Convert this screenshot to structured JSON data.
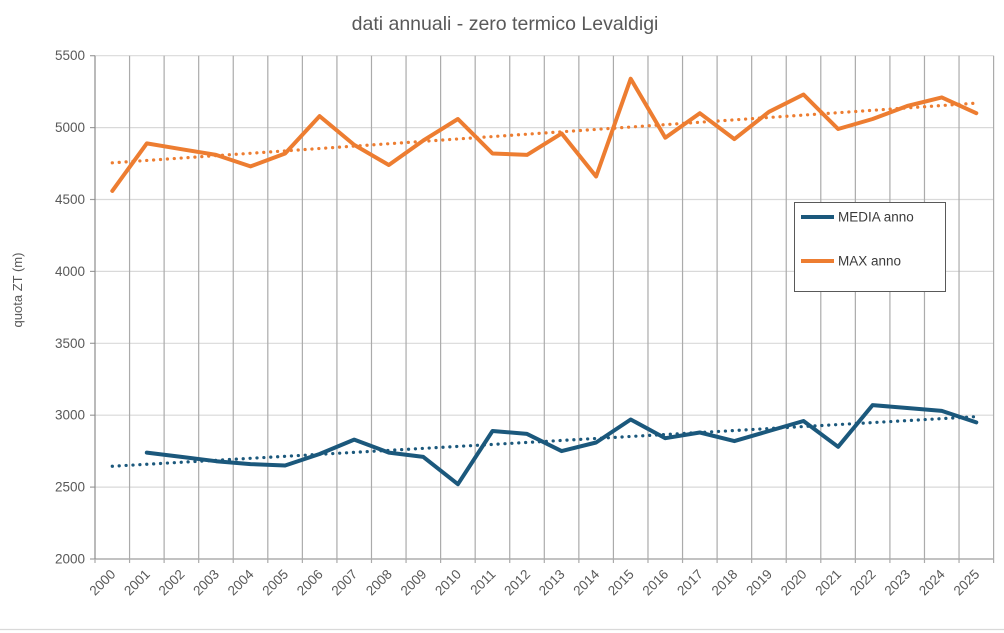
{
  "chart_data": {
    "type": "line",
    "title": "dati annuali - zero termico Levaldigi",
    "xlabel": "",
    "ylabel": "quota ZT (m)",
    "ylim": [
      2000,
      5500
    ],
    "ytick_step": 500,
    "ytick_labels": [
      "2000",
      "2500",
      "3000",
      "3500",
      "4000",
      "4500",
      "5000",
      "5500"
    ],
    "grid": "both",
    "legend_position": "right-middle",
    "categories": [
      "2000",
      "2001",
      "2002",
      "2003",
      "2004",
      "2005",
      "2006",
      "2007",
      "2008",
      "2009",
      "2010",
      "2011",
      "2012",
      "2013",
      "2014",
      "2015",
      "2016",
      "2017",
      "2018",
      "2019",
      "2020",
      "2021",
      "2022",
      "2023",
      "2024",
      "2025"
    ],
    "series": [
      {
        "name": "MEDIA anno",
        "color": "#1b587c",
        "values": [
          null,
          2740,
          2710,
          2680,
          2660,
          2650,
          2730,
          2830,
          2740,
          2710,
          2520,
          2890,
          2870,
          2750,
          2810,
          2970,
          2840,
          2880,
          2820,
          2890,
          2960,
          2780,
          3070,
          3050,
          3030,
          2950
        ],
        "trendline": {
          "style": "dotted",
          "start": 2645,
          "end": 2990
        }
      },
      {
        "name": "MAX anno",
        "color": "#ed7d31",
        "values": [
          4560,
          4890,
          4850,
          4810,
          4730,
          4820,
          5080,
          4880,
          4740,
          4910,
          5060,
          4820,
          4810,
          4960,
          4660,
          5340,
          4930,
          5100,
          4920,
          5110,
          5230,
          4990,
          5060,
          5150,
          5210,
          5100
        ],
        "trendline": {
          "style": "dotted",
          "start": 4755,
          "end": 5170
        }
      }
    ]
  },
  "legend": {
    "items": [
      {
        "label": "MEDIA anno"
      },
      {
        "label": "MAX anno"
      }
    ]
  }
}
